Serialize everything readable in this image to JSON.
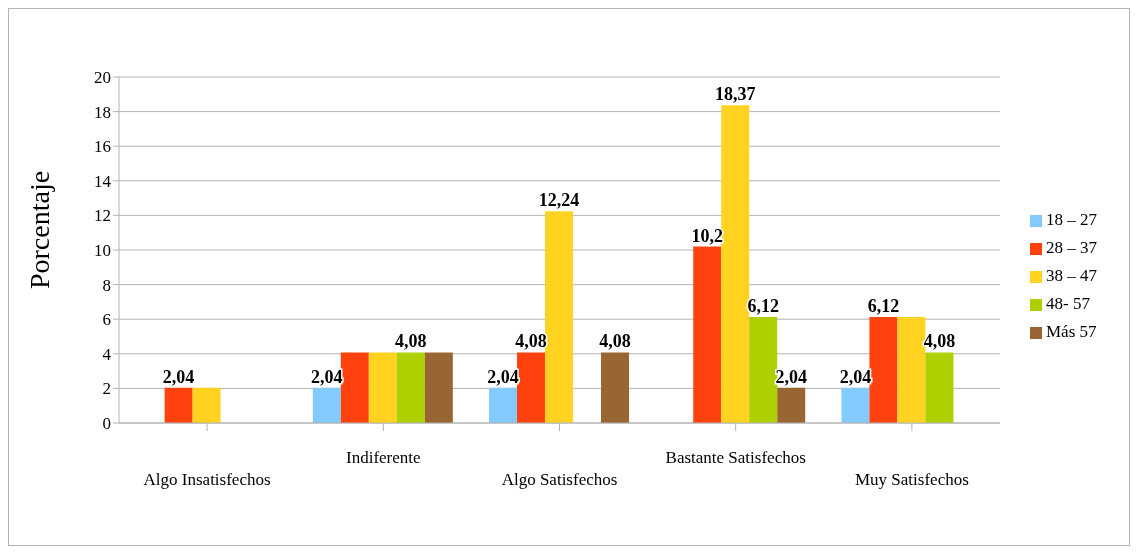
{
  "chart_data": {
    "type": "bar",
    "ylabel": "Porcentaje",
    "categories": [
      "Algo Insatisfechos",
      "Indiferente",
      "Algo Satisfechos",
      "Bastante Satisfechos",
      "Muy Satisfechos"
    ],
    "series": [
      {
        "name": "18 – 27",
        "color": "#83caff",
        "values": [
          null,
          2.04,
          2.04,
          null,
          2.04
        ],
        "value_labels": [
          null,
          "2,04",
          "2,04",
          null,
          "2,04"
        ]
      },
      {
        "name": "28 – 37",
        "color": "#ff420e",
        "values": [
          2.04,
          4.08,
          4.08,
          10.2,
          6.12
        ],
        "value_labels": [
          "2,04",
          null,
          "4,08",
          "10,2",
          "6,12"
        ]
      },
      {
        "name": "38 – 47",
        "color": "#ffd320",
        "values": [
          2.04,
          4.08,
          12.24,
          18.37,
          6.12
        ],
        "value_labels": [
          null,
          null,
          "12,24",
          "18,37",
          null
        ]
      },
      {
        "name": "48- 57",
        "color": "#aecf00",
        "values": [
          null,
          4.08,
          null,
          6.12,
          4.08
        ],
        "value_labels": [
          null,
          "4,08",
          null,
          "6,12",
          "4,08"
        ]
      },
      {
        "name": "Más 57",
        "color": "#996633",
        "values": [
          null,
          4.08,
          4.08,
          2.04,
          null
        ],
        "value_labels": [
          null,
          null,
          "4,08",
          "2,04",
          null
        ]
      }
    ],
    "ylim": [
      0,
      20
    ],
    "yticks": [
      0,
      2,
      4,
      6,
      8,
      10,
      12,
      14,
      16,
      18,
      20
    ],
    "grid": "y",
    "legend": "right"
  }
}
